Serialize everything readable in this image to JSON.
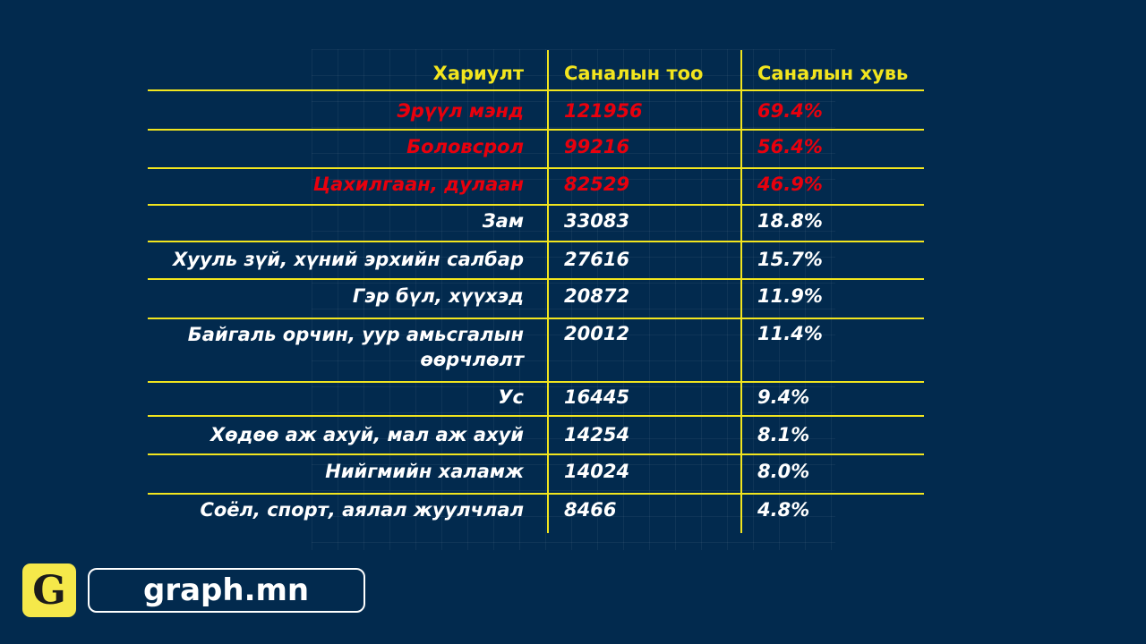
{
  "chart_data": {
    "type": "table",
    "columns": [
      "Хариулт",
      "Саналын тоо",
      "Саналын хувь"
    ],
    "rows": [
      {
        "answer": "Эрүүл мэнд",
        "count": "121956",
        "percent": "69.4%",
        "highlight": true
      },
      {
        "answer": "Боловсрол",
        "count": "99216",
        "percent": "56.4%",
        "highlight": true
      },
      {
        "answer": "Цахилгаан, дулаан",
        "count": "82529",
        "percent": "46.9%",
        "highlight": true
      },
      {
        "answer": "Зам",
        "count": "33083",
        "percent": "18.8%",
        "highlight": false
      },
      {
        "answer": "Хууль зүй, хүний эрхийн салбар",
        "count": "27616",
        "percent": "15.7%",
        "highlight": false
      },
      {
        "answer": "Гэр бүл, хүүхэд",
        "count": "20872",
        "percent": "11.9%",
        "highlight": false
      },
      {
        "answer": "Байгаль орчин, уур амьсгалын өөрчлөлт",
        "count": "20012",
        "percent": "11.4%",
        "highlight": false
      },
      {
        "answer": "Ус",
        "count": "16445",
        "percent": "9.4%",
        "highlight": false
      },
      {
        "answer": "Хөдөө аж ахуй, мал аж ахуй",
        "count": "14254",
        "percent": "8.1%",
        "highlight": false
      },
      {
        "answer": "Нийгмийн халамж",
        "count": "14024",
        "percent": "8.0%",
        "highlight": false
      },
      {
        "answer": "Соёл, спорт, аялал жуулчлал",
        "count": "8466",
        "percent": "4.8%",
        "highlight": false
      }
    ]
  },
  "logo": {
    "icon_letter": "G",
    "text": "graph.mn"
  },
  "colors": {
    "background": "#022a4e",
    "accent": "#f2e51e",
    "highlight": "#e8000d",
    "text": "#ffffff"
  }
}
